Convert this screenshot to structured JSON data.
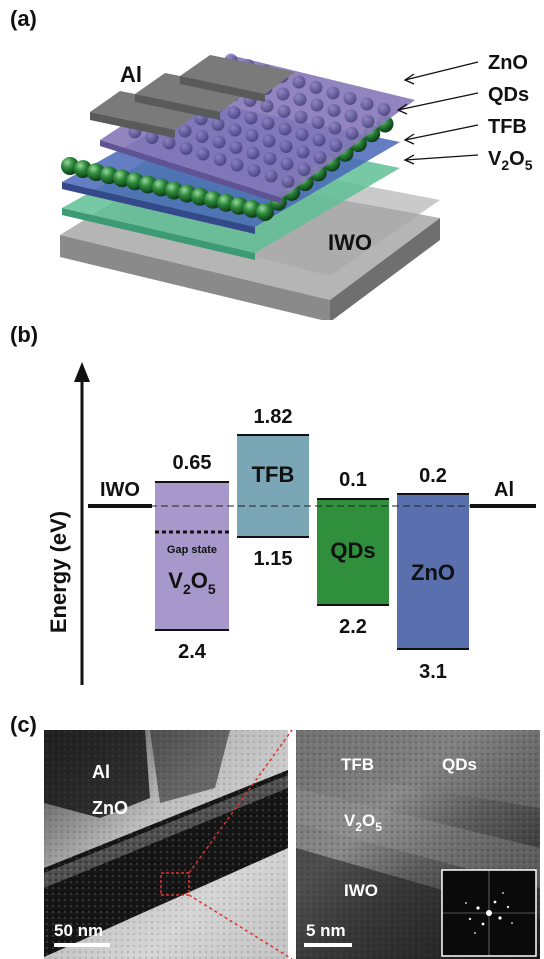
{
  "panels": {
    "a": "(a)",
    "b": "(b)",
    "c": "(c)"
  },
  "device": {
    "contact": "Al",
    "substrate": "IWO",
    "layers": [
      {
        "name": "ZnO",
        "sub": "",
        "tail": ""
      },
      {
        "name": "QDs",
        "sub": "",
        "tail": ""
      },
      {
        "name": "TFB",
        "sub": "",
        "tail": ""
      },
      {
        "name": "V",
        "sub": "2",
        "tail": "O",
        "sub2": "5"
      }
    ],
    "colors": {
      "zno": "#8577b8",
      "qd": "#2e7a3a",
      "tfb": "#4a67b8",
      "v2o5": "#5fbf96",
      "iwo": "#9a9a9a"
    }
  },
  "band": {
    "axis_label": "Energy (eV)",
    "left_electrode": "IWO",
    "right_electrode": "Al",
    "gap_state": "Gap state",
    "v2o5": {
      "name": "V",
      "sub1": "2",
      "mid": "O",
      "sub2": "5",
      "top": "0.65",
      "bottom": "2.4",
      "color": "#a698cb"
    },
    "tfb": {
      "name": "TFB",
      "top": "1.82",
      "bottom": "1.15",
      "color": "#7aa6b6"
    },
    "qds": {
      "name": "QDs",
      "top": "0.1",
      "bottom": "2.2",
      "color": "#2f8f3c"
    },
    "zno": {
      "name": "ZnO",
      "top": "0.2",
      "bottom": "3.1",
      "color": "#5a6fad"
    }
  },
  "tem": {
    "left": {
      "al": "Al",
      "zno": "ZnO",
      "scale": "50 nm"
    },
    "right": {
      "tfb": "TFB",
      "qds": "QDs",
      "v2o5": "V",
      "v2o5_sub1": "2",
      "v2o5_mid": "O",
      "v2o5_sub2": "5",
      "iwo": "IWO",
      "scale": "5 nm"
    }
  }
}
